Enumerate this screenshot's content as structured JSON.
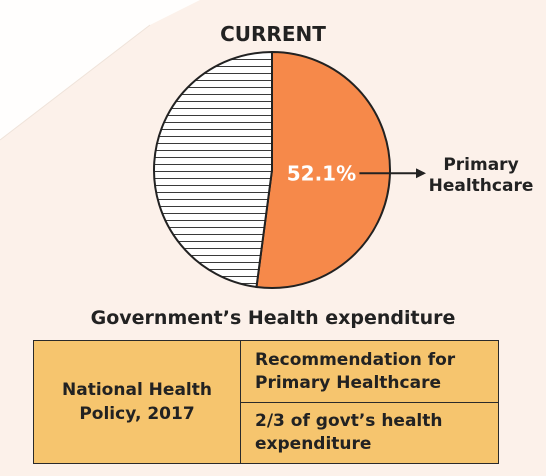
{
  "chart_data": {
    "type": "pie",
    "title": "CURRENT",
    "subtitle": "Government’s Health expenditure",
    "slices": [
      {
        "label": "Primary Healthcare",
        "value": 52.1,
        "display": "52.1%",
        "color": "#f6894a",
        "pattern": "solid"
      },
      {
        "label": "",
        "value": 47.9,
        "display": "",
        "color": "#ffffff",
        "pattern": "horizontal-lines"
      }
    ],
    "callout": {
      "text": "Primary\nHealthcare",
      "points_to": "Primary Healthcare"
    }
  },
  "table": {
    "left": "National Health\nPolicy, 2017",
    "right_top": "Recommendation for\nPrimary Healthcare",
    "right_bottom": "2/3 of govt’s health\nexpenditure"
  },
  "colors": {
    "background": "#fcf1ea",
    "highlight_slice": "#f6894a",
    "table_fill": "#f6c56e",
    "text": "#222222"
  }
}
